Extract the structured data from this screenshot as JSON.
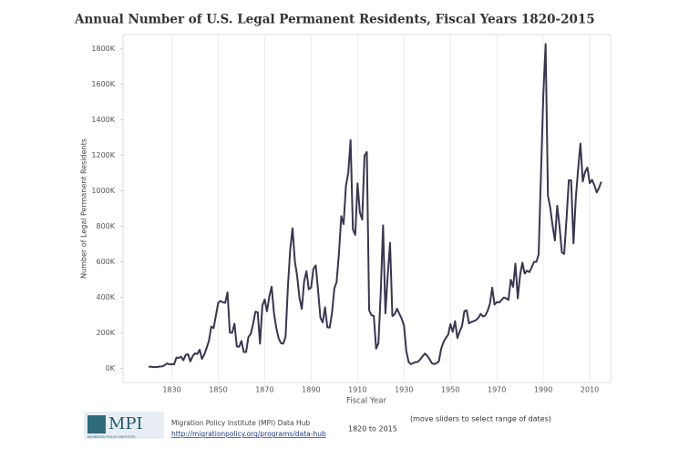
{
  "chart_data": {
    "type": "line",
    "title": "Annual Number of U.S. Legal Permanent Residents, Fiscal Years 1820-2015",
    "y_label": "Number of Legal Permanent Residents",
    "x_label": "Fiscal Year",
    "color": "#3a3550",
    "grid": "x",
    "xlim": [
      1809,
      2019
    ],
    "xticks": [
      1830,
      1850,
      1870,
      1890,
      1910,
      1930,
      1950,
      1970,
      1990,
      2010
    ],
    "ylim": [
      -80000,
      1880000
    ],
    "yticks": [
      {
        "value": 0,
        "label": "0K"
      },
      {
        "value": 200000,
        "label": "200K"
      },
      {
        "value": 400000,
        "label": "400K"
      },
      {
        "value": 600000,
        "label": "600K"
      },
      {
        "value": 800000,
        "label": "800K"
      },
      {
        "value": 1000000,
        "label": "1000K"
      },
      {
        "value": 1200000,
        "label": "1200K"
      },
      {
        "value": 1400000,
        "label": "1400K"
      },
      {
        "value": 1600000,
        "label": "1600K"
      },
      {
        "value": 1800000,
        "label": "1800K"
      }
    ],
    "x": [
      1820,
      1821,
      1822,
      1823,
      1824,
      1825,
      1826,
      1827,
      1828,
      1829,
      1830,
      1831,
      1832,
      1833,
      1834,
      1835,
      1836,
      1837,
      1838,
      1839,
      1840,
      1841,
      1842,
      1843,
      1844,
      1845,
      1846,
      1847,
      1848,
      1849,
      1850,
      1851,
      1852,
      1853,
      1854,
      1855,
      1856,
      1857,
      1858,
      1859,
      1860,
      1861,
      1862,
      1863,
      1864,
      1865,
      1866,
      1867,
      1868,
      1869,
      1870,
      1871,
      1872,
      1873,
      1874,
      1875,
      1876,
      1877,
      1878,
      1879,
      1880,
      1881,
      1882,
      1883,
      1884,
      1885,
      1886,
      1887,
      1888,
      1889,
      1890,
      1891,
      1892,
      1893,
      1894,
      1895,
      1896,
      1897,
      1898,
      1899,
      1900,
      1901,
      1902,
      1903,
      1904,
      1905,
      1906,
      1907,
      1908,
      1909,
      1910,
      1911,
      1912,
      1913,
      1914,
      1915,
      1916,
      1917,
      1918,
      1919,
      1920,
      1921,
      1922,
      1923,
      1924,
      1925,
      1926,
      1927,
      1928,
      1929,
      1930,
      1931,
      1932,
      1933,
      1934,
      1935,
      1936,
      1937,
      1938,
      1939,
      1940,
      1941,
      1942,
      1943,
      1944,
      1945,
      1946,
      1947,
      1948,
      1949,
      1950,
      1951,
      1952,
      1953,
      1954,
      1955,
      1956,
      1957,
      1958,
      1959,
      1960,
      1961,
      1962,
      1963,
      1964,
      1965,
      1966,
      1967,
      1968,
      1969,
      1970,
      1971,
      1972,
      1973,
      1974,
      1975,
      1976,
      1977,
      1978,
      1979,
      1980,
      1981,
      1982,
      1983,
      1984,
      1985,
      1986,
      1987,
      1988,
      1989,
      1990,
      1991,
      1992,
      1993,
      1994,
      1995,
      1996,
      1997,
      1998,
      1999,
      2000,
      2001,
      2002,
      2003,
      2004,
      2005,
      2006,
      2007,
      2008,
      2009,
      2010,
      2011,
      2012,
      2013,
      2014,
      2015
    ],
    "values": [
      8385,
      9127,
      6911,
      6354,
      7912,
      10199,
      10837,
      18875,
      27382,
      22520,
      23322,
      22633,
      60482,
      58640,
      65365,
      45374,
      76242,
      79340,
      38914,
      68069,
      84066,
      80289,
      104565,
      52496,
      78615,
      114371,
      154416,
      234968,
      226527,
      297024,
      369980,
      379466,
      371603,
      368645,
      427833,
      200877,
      200436,
      251306,
      123126,
      121282,
      153640,
      91918,
      91985,
      176282,
      193418,
      248120,
      318568,
      315722,
      138840,
      352768,
      387203,
      321350,
      404806,
      459803,
      313339,
      227498,
      169986,
      141857,
      138469,
      177826,
      457257,
      669431,
      788992,
      603322,
      518592,
      395346,
      334203,
      490109,
      546889,
      444427,
      455302,
      560319,
      579663,
      439730,
      285631,
      258536,
      343267,
      230832,
      229299,
      311715,
      448572,
      487918,
      648743,
      857046,
      812870,
      1026499,
      1100735,
      1285349,
      782870,
      751786,
      1041570,
      878587,
      838172,
      1197892,
      1218480,
      326700,
      298826,
      295403,
      110618,
      141132,
      430001,
      805228,
      309556,
      522919,
      706896,
      294314,
      304488,
      335175,
      307255,
      279678,
      241700,
      97139,
      35576,
      23068,
      29470,
      34956,
      36329,
      50244,
      67895,
      82998,
      70756,
      51776,
      28781,
      23725,
      28551,
      38119,
      108721,
      147292,
      170570,
      188317,
      249187,
      205717,
      265520,
      170434,
      208177,
      237790,
      321625,
      326867,
      253265,
      260686,
      265398,
      271344,
      283763,
      306260,
      292248,
      296697,
      323040,
      361972,
      454448,
      358579,
      373326,
      370478,
      384685,
      398515,
      393919,
      385378,
      499093,
      458755,
      589810,
      394244,
      524295,
      595014,
      533624,
      550052,
      541811,
      568149,
      600027,
      599889,
      641346,
      1090172,
      1535872,
      1826595,
      973977,
      903916,
      803993,
      720177,
      915560,
      797847,
      653206,
      644787,
      841002,
      1058902,
      1059356,
      703542,
      957883,
      1122257,
      1266129,
      1052415,
      1107126,
      1130818,
      1042625,
      1062040,
      1031631,
      990553,
      1016518,
      1051031
    ]
  },
  "footer": {
    "logo": "MPI",
    "logo_sub": "MIGRATION POLICY INSTITUTE",
    "source": "Migration Policy Institute (MPI) Data Hub",
    "url": "http://migrationpolicy.org/programs/data-hub",
    "range": "1820 to 2015",
    "hint": "(move sliders to select range of dates)"
  }
}
